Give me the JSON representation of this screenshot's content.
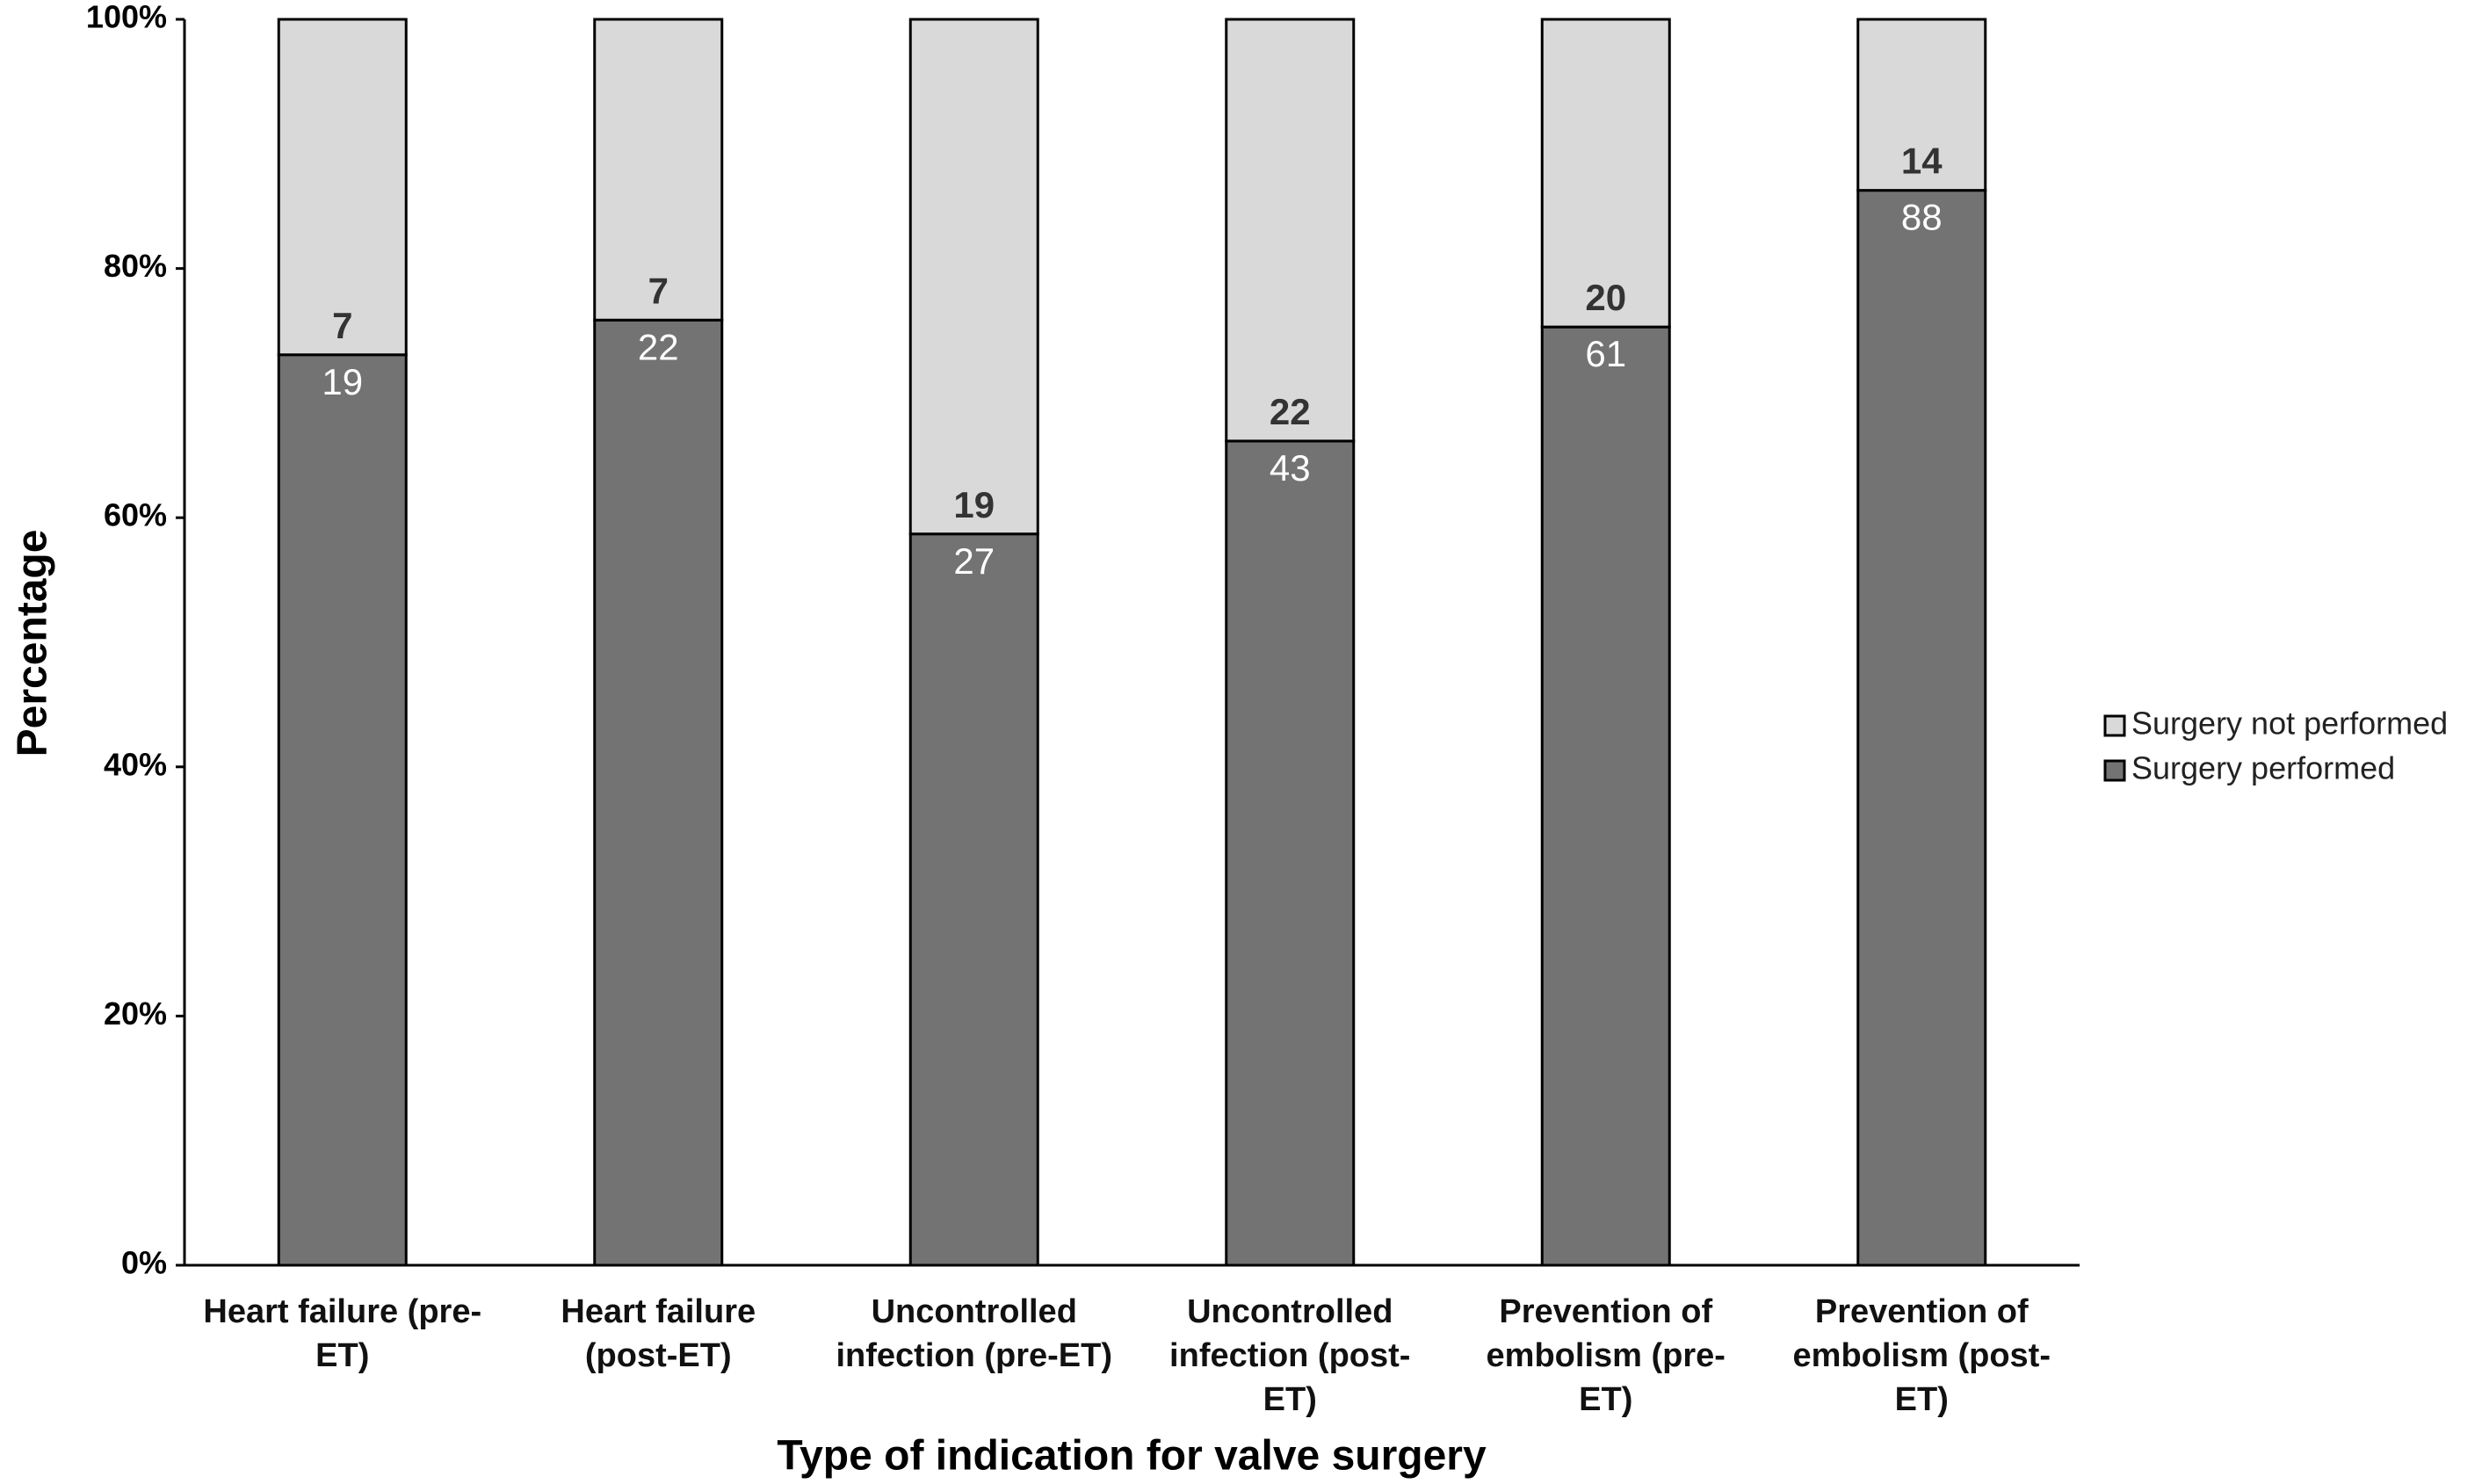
{
  "chart_data": {
    "type": "bar",
    "stacking": "percent",
    "x_label": "Type of indication for valve surgery",
    "y_label": "Percentage",
    "categories": [
      "Heart failure (pre-ET)",
      "Heart failure (post-ET)",
      "Uncontrolled infection (pre-ET)",
      "Uncontrolled infection (post-ET)",
      "Prevention of embolism (pre-ET)",
      "Prevention of embolism (post-ET)"
    ],
    "series": [
      {
        "name": "Surgery performed",
        "color": "#737373",
        "values": [
          19,
          22,
          27,
          43,
          61,
          88
        ]
      },
      {
        "name": "Surgery not performed",
        "color": "#d9d9d9",
        "values": [
          7,
          7,
          19,
          22,
          20,
          14
        ]
      }
    ],
    "ylim": [
      0,
      100
    ],
    "yticks": [
      {
        "value": 0,
        "label": "0%"
      },
      {
        "value": 20,
        "label": "20%"
      },
      {
        "value": 40,
        "label": "40%"
      },
      {
        "value": 60,
        "label": "60%"
      },
      {
        "value": 80,
        "label": "80%"
      },
      {
        "value": 100,
        "label": "100%"
      }
    ],
    "legend": "right"
  }
}
